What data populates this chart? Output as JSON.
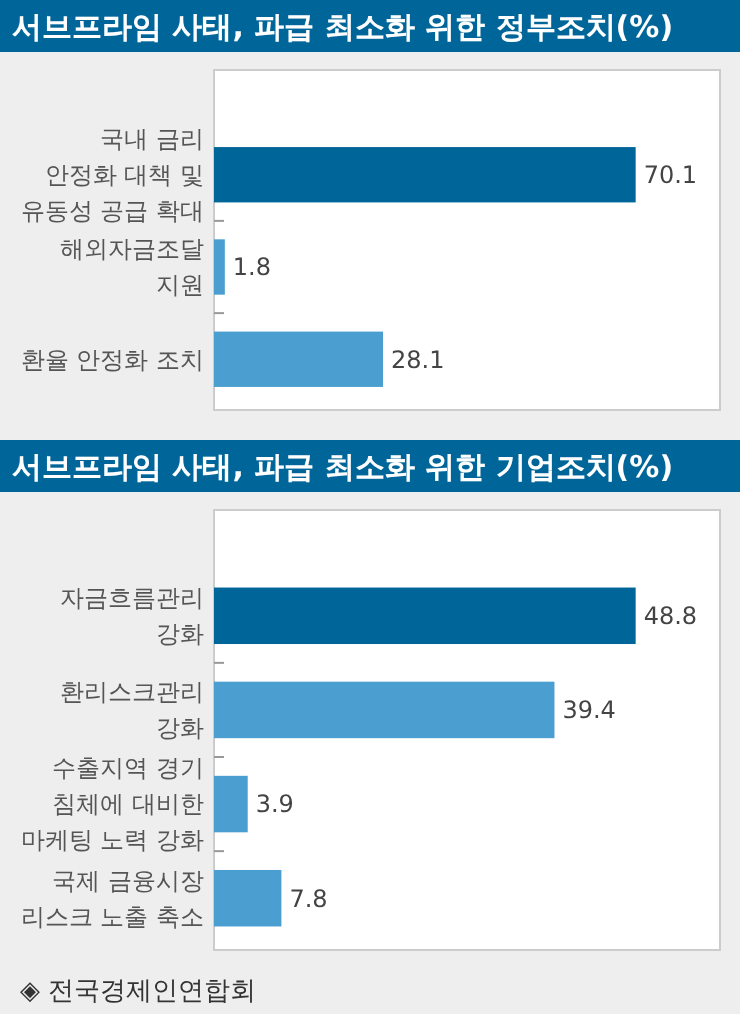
{
  "chart_data": [
    {
      "type": "bar",
      "orientation": "horizontal",
      "title": "서브프라임 사태, 파급 최소화 위한 정부조치(%)",
      "categories": [
        "국내 금리\n안정화 대책 및\n유동성 공급 확대",
        "해외자금조달\n지원",
        "환율 안정화 조치"
      ],
      "values": [
        70.1,
        1.8,
        28.1
      ],
      "colors": [
        "#006699",
        "#4a9fd0",
        "#4a9fd0"
      ],
      "data_labels": true
    },
    {
      "type": "bar",
      "orientation": "horizontal",
      "title": "서브프라임 사태, 파급 최소화 위한 기업조치(%)",
      "categories": [
        "자금흐름관리\n강화",
        "환리스크관리\n강화",
        "수출지역 경기\n침체에 대비한\n마케팅 노력 강화",
        "국제 금융시장\n리스크 노출 축소"
      ],
      "values": [
        48.8,
        39.4,
        3.9,
        7.8
      ],
      "colors": [
        "#006699",
        "#4a9fd0",
        "#4a9fd0",
        "#4a9fd0"
      ],
      "data_labels": true,
      "annotations": [
        "◈ 전국경제인연합회"
      ]
    }
  ]
}
